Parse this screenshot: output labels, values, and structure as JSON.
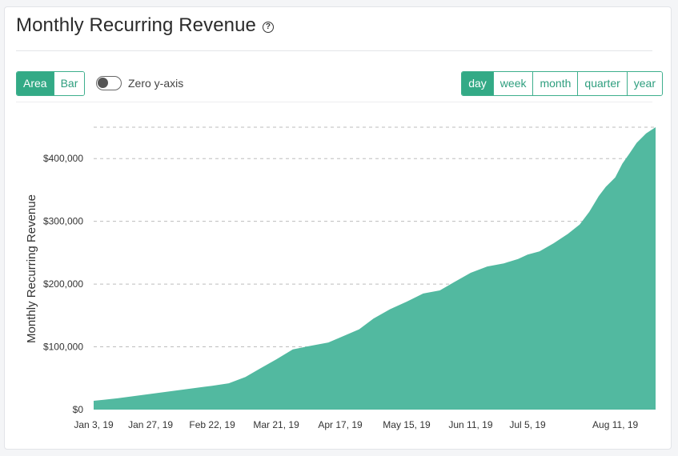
{
  "header": {
    "title": "Monthly Recurring Revenue",
    "help_icon": "help-circle-icon"
  },
  "controls": {
    "chart_types": [
      {
        "label": "Area",
        "active": true
      },
      {
        "label": "Bar",
        "active": false
      }
    ],
    "zero_axis": {
      "label": "Zero y-axis",
      "enabled": false
    },
    "periods": [
      {
        "label": "day",
        "active": true
      },
      {
        "label": "week",
        "active": false
      },
      {
        "label": "month",
        "active": false
      },
      {
        "label": "quarter",
        "active": false
      },
      {
        "label": "year",
        "active": false
      }
    ]
  },
  "colors": {
    "accent": "#33aa86",
    "area_fill": "#52b9a0",
    "grid": "#bdbdbd"
  },
  "chart_data": {
    "type": "area",
    "title": "Monthly Recurring Revenue",
    "ylabel": "Monthly Recurring Revenue",
    "xlabel": "",
    "x_start": "2019-01-03",
    "x_end": "2019-08-28",
    "ylim": [
      0,
      450000
    ],
    "yticks": [
      {
        "value": 0,
        "label": "$0"
      },
      {
        "value": 100000,
        "label": "$100,000"
      },
      {
        "value": 200000,
        "label": "$200,000"
      },
      {
        "value": 300000,
        "label": "$300,000"
      },
      {
        "value": 400000,
        "label": "$400,000"
      }
    ],
    "xticks": [
      {
        "date": "2019-01-03",
        "label": "Jan 3, 19"
      },
      {
        "date": "2019-01-27",
        "label": "Jan 27, 19"
      },
      {
        "date": "2019-02-22",
        "label": "Feb 22, 19"
      },
      {
        "date": "2019-03-21",
        "label": "Mar 21, 19"
      },
      {
        "date": "2019-04-17",
        "label": "Apr 17, 19"
      },
      {
        "date": "2019-05-15",
        "label": "May 15, 19"
      },
      {
        "date": "2019-06-11",
        "label": "Jun 11, 19"
      },
      {
        "date": "2019-07-05",
        "label": "Jul 5, 19"
      },
      {
        "date": "2019-08-11",
        "label": "Aug 11, 19"
      }
    ],
    "grid": true,
    "series": [
      {
        "x": [
          "2019-01-03",
          "2019-01-13",
          "2019-01-27",
          "2019-02-10",
          "2019-02-22",
          "2019-03-01",
          "2019-03-08",
          "2019-03-14",
          "2019-03-21",
          "2019-03-28",
          "2019-04-05",
          "2019-04-12",
          "2019-04-17",
          "2019-04-25",
          "2019-05-01",
          "2019-05-08",
          "2019-05-15",
          "2019-05-22",
          "2019-05-29",
          "2019-06-04",
          "2019-06-11",
          "2019-06-18",
          "2019-06-25",
          "2019-07-01",
          "2019-07-05",
          "2019-07-10",
          "2019-07-16",
          "2019-07-22",
          "2019-07-27",
          "2019-07-31",
          "2019-08-04",
          "2019-08-07",
          "2019-08-11",
          "2019-08-14",
          "2019-08-17",
          "2019-08-20",
          "2019-08-24",
          "2019-08-28"
        ],
        "values": [
          14000,
          18000,
          25000,
          32000,
          38000,
          42000,
          52000,
          65000,
          80000,
          96000,
          102000,
          107000,
          115000,
          128000,
          145000,
          160000,
          172000,
          185000,
          190000,
          203000,
          218000,
          228000,
          233000,
          240000,
          247000,
          252000,
          265000,
          280000,
          295000,
          315000,
          340000,
          355000,
          370000,
          392000,
          408000,
          425000,
          440000,
          450000
        ]
      }
    ]
  }
}
